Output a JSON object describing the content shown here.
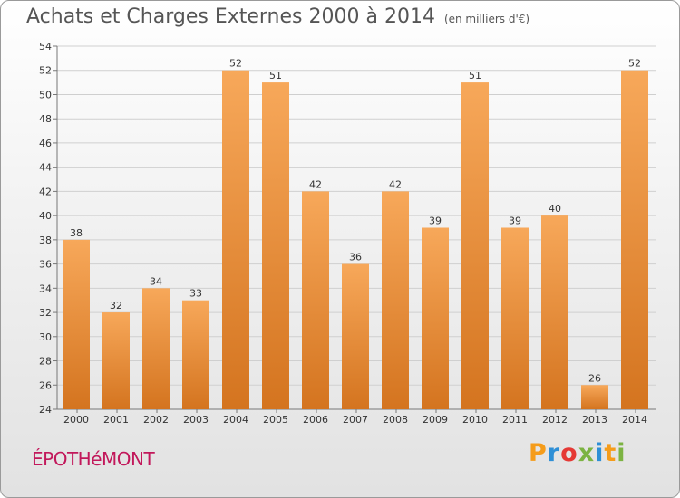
{
  "title": "Achats et Charges Externes 2000 à 2014",
  "subtitle": "(en milliers d'€)",
  "location": "ÉPOTHéMONT",
  "logo": {
    "letters": [
      "P",
      "r",
      "o",
      "x",
      "i",
      "t",
      "i"
    ],
    "colors": [
      "#f59c1a",
      "#2e8fd6",
      "#e53935",
      "#7cb342",
      "#2e8fd6",
      "#f59c1a",
      "#7cb342"
    ]
  },
  "colors": {
    "bar_light": "#f7a85a",
    "bar_dark": "#d4741f",
    "accent_location": "#c2185b"
  },
  "chart_data": {
    "type": "bar",
    "categories": [
      "2000",
      "2001",
      "2002",
      "2003",
      "2004",
      "2005",
      "2006",
      "2007",
      "2008",
      "2009",
      "2010",
      "2011",
      "2012",
      "2013",
      "2014"
    ],
    "values": [
      38,
      32,
      34,
      33,
      52,
      51,
      42,
      36,
      42,
      39,
      51,
      39,
      40,
      26,
      52
    ],
    "ylim": [
      24,
      54
    ],
    "yticks": [
      24,
      26,
      28,
      30,
      32,
      34,
      36,
      38,
      40,
      42,
      44,
      46,
      48,
      50,
      52,
      54
    ],
    "grid": true
  }
}
